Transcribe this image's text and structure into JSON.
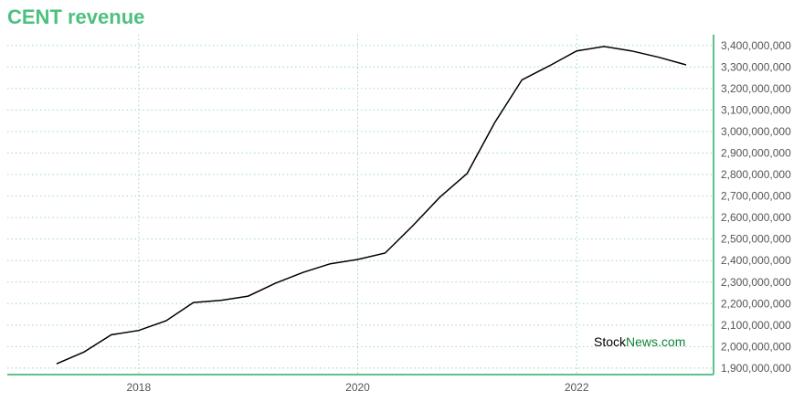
{
  "chart_data": {
    "type": "line",
    "title": "CENT revenue",
    "xlabel": "",
    "ylabel": "",
    "x_ticks": [
      "2018",
      "2020",
      "2022"
    ],
    "x_tick_values": [
      2018.0,
      2020.0,
      2022.0
    ],
    "xlim": [
      2016.8,
      2023.25
    ],
    "ylim": [
      1870000000,
      3450000000
    ],
    "y_ticks": [
      1900000000,
      2000000000,
      2100000000,
      2200000000,
      2300000000,
      2400000000,
      2500000000,
      2600000000,
      2700000000,
      2800000000,
      2900000000,
      3000000000,
      3100000000,
      3200000000,
      3300000000,
      3400000000
    ],
    "y_tick_labels": [
      "1,900,000,000",
      "2,000,000,000",
      "2,100,000,000",
      "2,200,000,000",
      "2,300,000,000",
      "2,400,000,000",
      "2,500,000,000",
      "2,600,000,000",
      "2,700,000,000",
      "2,800,000,000",
      "2,900,000,000",
      "3,000,000,000",
      "3,100,000,000",
      "3,200,000,000",
      "3,300,000,000",
      "3,400,000,000"
    ],
    "grid": true,
    "y_axis_position": "right",
    "series": [
      {
        "name": "",
        "color": "#000000",
        "x": [
          2017.25,
          2017.5,
          2017.75,
          2018.0,
          2018.25,
          2018.5,
          2018.75,
          2019.0,
          2019.25,
          2019.5,
          2019.75,
          2020.0,
          2020.25,
          2020.5,
          2020.75,
          2021.0,
          2021.25,
          2021.5,
          2021.75,
          2022.0,
          2022.25,
          2022.5,
          2022.75,
          2023.0
        ],
        "values": [
          1920000000,
          1975000000,
          2055000000,
          2075000000,
          2120000000,
          2205000000,
          2215000000,
          2235000000,
          2295000000,
          2345000000,
          2385000000,
          2405000000,
          2435000000,
          2560000000,
          2695000000,
          2805000000,
          3040000000,
          3240000000,
          3305000000,
          3375000000,
          3395000000,
          3375000000,
          3345000000,
          3310000000
        ]
      }
    ]
  },
  "watermark": {
    "part1": "Stock",
    "part2": "News.com"
  },
  "colors": {
    "accent": "#4cc17e",
    "axis": "#5ec28a",
    "grid": "#9ad9b3",
    "line": "#000000",
    "watermark_green": "#11843a"
  }
}
